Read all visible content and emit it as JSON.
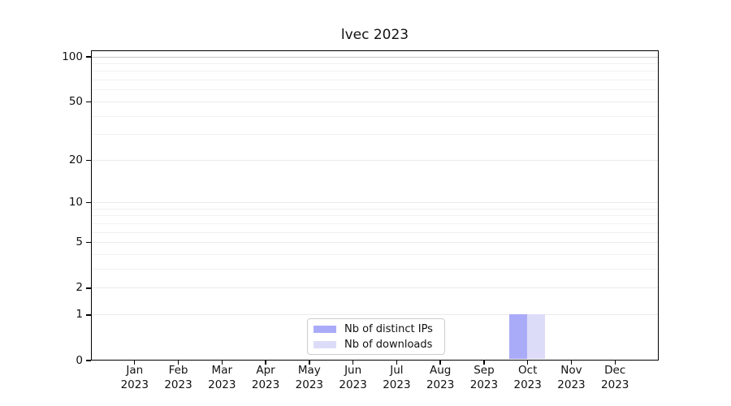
{
  "chart_data": {
    "type": "bar",
    "title": "lvec 2023",
    "categories": [
      "Jan\n2023",
      "Feb\n2023",
      "Mar\n2023",
      "Apr\n2023",
      "May\n2023",
      "Jun\n2023",
      "Jul\n2023",
      "Aug\n2023",
      "Sep\n2023",
      "Oct\n2023",
      "Nov\n2023",
      "Dec\n2023"
    ],
    "series": [
      {
        "name": "Nb of distinct IPs",
        "color": "#aaabf8",
        "values": [
          0,
          0,
          0,
          0,
          0,
          0,
          0,
          0,
          0,
          1,
          0,
          0
        ]
      },
      {
        "name": "Nb of downloads",
        "color": "#dcdcf9",
        "values": [
          0,
          0,
          0,
          0,
          0,
          0,
          0,
          0,
          0,
          1,
          0,
          0
        ]
      }
    ],
    "y_axis": {
      "scale": "log1p",
      "tick_values": [
        0,
        1,
        2,
        5,
        10,
        20,
        50,
        100
      ],
      "tick_labels": [
        "0",
        "1",
        "2",
        "5",
        "10",
        "20",
        "50",
        "100"
      ],
      "minor_tick_values": [
        3,
        4,
        6,
        7,
        8,
        9,
        30,
        40,
        60,
        70,
        80,
        90
      ],
      "ylim": [
        0,
        100
      ]
    },
    "x_axis": {
      "tick_labels": [
        "Jan\n2023",
        "Feb\n2023",
        "Mar\n2023",
        "Apr\n2023",
        "May\n2023",
        "Jun\n2023",
        "Jul\n2023",
        "Aug\n2023",
        "Sep\n2023",
        "Oct\n2023",
        "Nov\n2023",
        "Dec\n2023"
      ]
    },
    "legend": {
      "entries": [
        "Nb of distinct IPs",
        "Nb of downloads"
      ],
      "position": "lower-center"
    },
    "grid": true,
    "colors": {
      "bar_distinct_ips": "#aaabf8",
      "bar_downloads": "#dcdcf9",
      "grid_minor": "#f1f1f1",
      "grid_major": "#ebebeb",
      "grid_top": "#c5c5c5",
      "spine": "#000000",
      "text": "#111111",
      "legend_border": "#cccccc",
      "background": "#ffffff"
    }
  }
}
